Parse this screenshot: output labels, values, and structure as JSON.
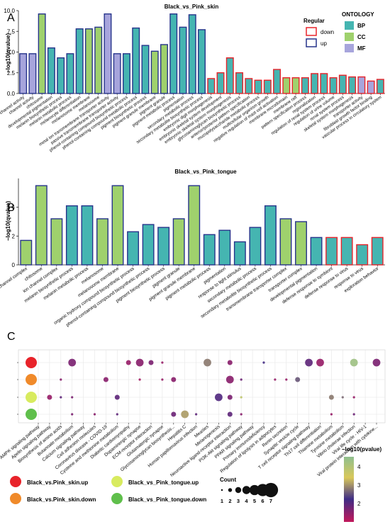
{
  "panels": {
    "A": "A",
    "B": "B",
    "C": "C"
  },
  "legend_A": {
    "regular_title": "Regular",
    "regular_items": [
      {
        "label": "down",
        "color": "#e8232a"
      },
      {
        "label": "up",
        "color": "#27348b"
      }
    ],
    "ontology_title": "ONTOLOGY",
    "ontology_items": [
      {
        "label": "BP",
        "color": "#45b5b1"
      },
      {
        "label": "CC",
        "color": "#9fd16d"
      },
      {
        "label": "MF",
        "color": "#a7a5dc"
      }
    ]
  },
  "legend_C": {
    "groups": [
      {
        "label": "Black_vs.Pink_skin.up",
        "color": "#e8232a"
      },
      {
        "label": "Black_vs.Pink_skin.down",
        "color": "#f08a2a"
      },
      {
        "label": "Black_vs_Pink_tongue.up",
        "color": "#d8eb5f"
      },
      {
        "label": "Black_vs_Pink_tongue.down",
        "color": "#5fbf4b"
      }
    ],
    "count_title": "Count",
    "count_values": [
      "1",
      "2",
      "3",
      "4",
      "5",
      "6",
      "7"
    ],
    "color_title": "−log10(pvalue)",
    "color_ticks": [
      "4",
      "3",
      "2"
    ],
    "color_scale": [
      "#c2185b",
      "#3f2d86",
      "#d9c85a",
      "#8fbf8f"
    ]
  },
  "chart_data": [
    {
      "type": "bar",
      "title": "Black_vs_Pink_skin",
      "ylabel": "−log10(qvalue)",
      "ylim": [
        0,
        10
      ],
      "yticks": [
        "0.0",
        "2.5",
        "5.0",
        "7.5",
        "10.0"
      ],
      "categories": [
        "cation channel activity",
        "channel activity",
        "chitosome",
        "developmental pigmentation",
        "melanin biosynthetic process",
        "melanin metabolic process",
        "melanocyte differentiation",
        "melanosome membrane",
        "melanosome",
        "metal ion transmembrane transporter activity",
        "passive transmembrane transporter activity",
        "phenol-containing compound biosynthetic process",
        "phenol-containing compound metabolic process",
        "pigment biosynthetic process",
        "pigment granule membrane",
        "pigment granule",
        "pigment metabolic process",
        "pigmentation",
        "secondary metabolic process",
        "secondary metabolite biosynthetic process",
        "embryonic digit morphogenesis",
        "embryonic skeletal system development",
        "embryonic skeletal system morphogenesis",
        "glycosaminoglycan biosynthetic process",
        "anterior/posterior pattern specification",
        "mucopolysaccharide metabolic process",
        "multicellular organism growth",
        "negative regulation of mast cell activation",
        "membrane microdomain",
        "membrane raft",
        "pattern specification process",
        "regionalization",
        "regulation of renal system process",
        "regulation of urine volume",
        "renal system process",
        "skeletal system morphogenesis",
        "transporter activity",
        "fibroblast growth factor binding",
        "vascular process in circulatory system"
      ],
      "values": [
        4.8,
        4.8,
        9.6,
        5.5,
        4.3,
        4.8,
        7.8,
        7.8,
        8.0,
        9.6,
        4.8,
        4.8,
        7.9,
        5.8,
        5.1,
        5.9,
        9.6,
        8.0,
        9.5,
        7.7,
        1.8,
        2.5,
        4.3,
        2.5,
        1.8,
        1.6,
        1.6,
        2.9,
        1.9,
        1.9,
        1.9,
        2.4,
        2.4,
        1.9,
        2.2,
        2.0,
        2.0,
        1.5,
        1.7
      ],
      "ontology": [
        "MF",
        "MF",
        "CC",
        "BP",
        "BP",
        "BP",
        "BP",
        "CC",
        "CC",
        "MF",
        "MF",
        "BP",
        "BP",
        "BP",
        "CC",
        "CC",
        "BP",
        "BP",
        "BP",
        "BP",
        "BP",
        "BP",
        "BP",
        "BP",
        "BP",
        "BP",
        "BP",
        "BP",
        "CC",
        "CC",
        "BP",
        "BP",
        "BP",
        "BP",
        "BP",
        "BP",
        "MF",
        "MF",
        "BP"
      ],
      "regulation": [
        "up",
        "up",
        "up",
        "up",
        "up",
        "up",
        "up",
        "up",
        "up",
        "up",
        "up",
        "up",
        "up",
        "up",
        "up",
        "up",
        "up",
        "up",
        "up",
        "up",
        "down",
        "down",
        "down",
        "down",
        "down",
        "down",
        "down",
        "down",
        "down",
        "down",
        "down",
        "down",
        "down",
        "down",
        "down",
        "down",
        "down",
        "down",
        "down"
      ]
    },
    {
      "type": "bar",
      "title": "Black_vs_Pink_tongue",
      "ylabel": "−log10(qvalue)",
      "ylim": [
        0,
        6
      ],
      "yticks": [
        "0",
        "2",
        "4"
      ],
      "categories": [
        "cation channel complex",
        "chitosome",
        "ion channel complex",
        "melanin biosynthetic process",
        "melanin metabolic process",
        "melanosome",
        "melanosome membrane",
        "organic hydroxy compound biosynthetic process",
        "phenol-containing compound biosynthetic process",
        "pigment biosynthetic process",
        "pigment granule",
        "pigment granule membrane",
        "pigment metabolic process",
        "pigmentation",
        "response to light stimulus",
        "secondary metabolic process",
        "secondary metabolite biosynthetic process",
        "transmembrane transporter complex",
        "transporter complex",
        "developmental pigmentation",
        "defense response to symbiont",
        "defense response to virus",
        "response to virus",
        "exploration behavior"
      ],
      "values": [
        1.7,
        5.5,
        3.2,
        4.1,
        4.1,
        3.2,
        5.5,
        2.3,
        2.8,
        2.6,
        3.2,
        5.5,
        2.1,
        2.4,
        1.6,
        2.6,
        4.1,
        3.2,
        3.0,
        1.9,
        1.9,
        1.9,
        1.4,
        1.9
      ],
      "ontology": [
        "CC",
        "CC",
        "CC",
        "BP",
        "BP",
        "CC",
        "CC",
        "BP",
        "BP",
        "BP",
        "CC",
        "CC",
        "BP",
        "BP",
        "BP",
        "BP",
        "BP",
        "CC",
        "CC",
        "BP",
        "BP",
        "BP",
        "BP",
        "BP"
      ],
      "regulation": [
        "up",
        "up",
        "up",
        "up",
        "up",
        "up",
        "up",
        "up",
        "up",
        "up",
        "up",
        "up",
        "up",
        "up",
        "up",
        "up",
        "up",
        "up",
        "up",
        "up",
        "down",
        "down",
        "down",
        "down"
      ]
    },
    {
      "type": "scatter",
      "x": [
        "AMPK signaling pathway",
        "Apelin signaling pathway",
        "Biosynthesis of amino acids",
        "Butanoate metabolism",
        "Calcium signaling pathway",
        "Cell adhesion molecules",
        "Coronavirus disease - COVID-19",
        "Cysteine and methionine metabolism",
        "Diabetic cardiomyopathy",
        "Dopaminergic synapse",
        "ECM-receptor interaction",
        "Glutamatergic synapse",
        "Glycosaminoglycan biosynthesis...",
        "Hepatitis C",
        "Human papillomavirus infection",
        "Measles",
        "Melanogenesis",
        "Neuroactive ligand-receptor interaction",
        "PI3K-Akt signaling pathway",
        "PPAR signaling pathway",
        "Primary immunodeficiency",
        "Regulation of lipolysis in adipocytes",
        "Renin secretion",
        "Synaptic vesicle cycle",
        "T cell receptor signaling pathway",
        "Th17 cell differentiation",
        "Thiamine metabolism",
        "Tyrosine metabolism",
        "Vibrio cholerae infection",
        "Viral life cycle - HIV-1",
        "Viral protein interaction with cytokine..."
      ],
      "groups": [
        "Black_vs.Pink_skin.up",
        "Black_vs.Pink_skin.down",
        "Black_vs_Pink_tongue.up",
        "Black_vs_Pink_tongue.down"
      ],
      "points": [
        {
          "group": 0,
          "x": 4,
          "count": 3,
          "pvalue": 2.3
        },
        {
          "group": 0,
          "x": 9,
          "count": 2,
          "pvalue": 2.1
        },
        {
          "group": 0,
          "x": 10,
          "count": 3,
          "pvalue": 2.2
        },
        {
          "group": 0,
          "x": 11,
          "count": 2,
          "pvalue": 2.3
        },
        {
          "group": 0,
          "x": 12,
          "count": 1,
          "pvalue": 2.1
        },
        {
          "group": 0,
          "x": 16,
          "count": 3,
          "pvalue": 3.2
        },
        {
          "group": 0,
          "x": 18,
          "count": 2,
          "pvalue": 2.2
        },
        {
          "group": 0,
          "x": 21,
          "count": 1,
          "pvalue": 2.7
        },
        {
          "group": 0,
          "x": 25,
          "count": 3,
          "pvalue": 2.5
        },
        {
          "group": 0,
          "x": 26,
          "count": 3,
          "pvalue": 2.1
        },
        {
          "group": 0,
          "x": 29,
          "count": 3,
          "pvalue": 4.4
        },
        {
          "group": 0,
          "x": 31,
          "count": 3,
          "pvalue": 2.3
        },
        {
          "group": 1,
          "x": 3,
          "count": 1,
          "pvalue": 2.2
        },
        {
          "group": 1,
          "x": 7,
          "count": 2,
          "pvalue": 2.2
        },
        {
          "group": 1,
          "x": 10,
          "count": 1,
          "pvalue": 2.0
        },
        {
          "group": 1,
          "x": 12,
          "count": 1,
          "pvalue": 2.1
        },
        {
          "group": 1,
          "x": 13,
          "count": 2,
          "pvalue": 2.2
        },
        {
          "group": 1,
          "x": 18,
          "count": 3,
          "pvalue": 2.2
        },
        {
          "group": 1,
          "x": 19,
          "count": 1,
          "pvalue": 2.4
        },
        {
          "group": 1,
          "x": 22,
          "count": 1,
          "pvalue": 2.1
        },
        {
          "group": 1,
          "x": 23,
          "count": 1,
          "pvalue": 2.1
        },
        {
          "group": 1,
          "x": 24,
          "count": 2,
          "pvalue": 3.0
        },
        {
          "group": 2,
          "x": 2,
          "count": 2,
          "pvalue": 2.1
        },
        {
          "group": 2,
          "x": 3,
          "count": 1,
          "pvalue": 2.5
        },
        {
          "group": 2,
          "x": 4,
          "count": 1,
          "pvalue": 2.3
        },
        {
          "group": 2,
          "x": 8,
          "count": 2,
          "pvalue": 2.5
        },
        {
          "group": 2,
          "x": 17,
          "count": 3,
          "pvalue": 2.6
        },
        {
          "group": 2,
          "x": 18,
          "count": 2,
          "pvalue": 2.3
        },
        {
          "group": 2,
          "x": 19,
          "count": 1,
          "pvalue": 4.0
        },
        {
          "group": 2,
          "x": 27,
          "count": 2,
          "pvalue": 3.2
        },
        {
          "group": 2,
          "x": 28,
          "count": 1,
          "pvalue": 3.1
        },
        {
          "group": 2,
          "x": 29,
          "count": 1,
          "pvalue": 2.1
        },
        {
          "group": 3,
          "x": 4,
          "count": 1,
          "pvalue": 2.3
        },
        {
          "group": 3,
          "x": 6,
          "count": 1,
          "pvalue": 2.2
        },
        {
          "group": 3,
          "x": 8,
          "count": 1,
          "pvalue": 2.5
        },
        {
          "group": 3,
          "x": 13,
          "count": 2,
          "pvalue": 2.4
        },
        {
          "group": 3,
          "x": 14,
          "count": 3,
          "pvalue": 3.4
        },
        {
          "group": 3,
          "x": 15,
          "count": 1,
          "pvalue": 2.5
        },
        {
          "group": 3,
          "x": 18,
          "count": 2,
          "pvalue": 2.5
        },
        {
          "group": 3,
          "x": 19,
          "count": 1,
          "pvalue": 2.2
        },
        {
          "group": 3,
          "x": 27,
          "count": 1,
          "pvalue": 2.1
        },
        {
          "group": 3,
          "x": 29,
          "count": 1,
          "pvalue": 2.4
        }
      ]
    }
  ]
}
